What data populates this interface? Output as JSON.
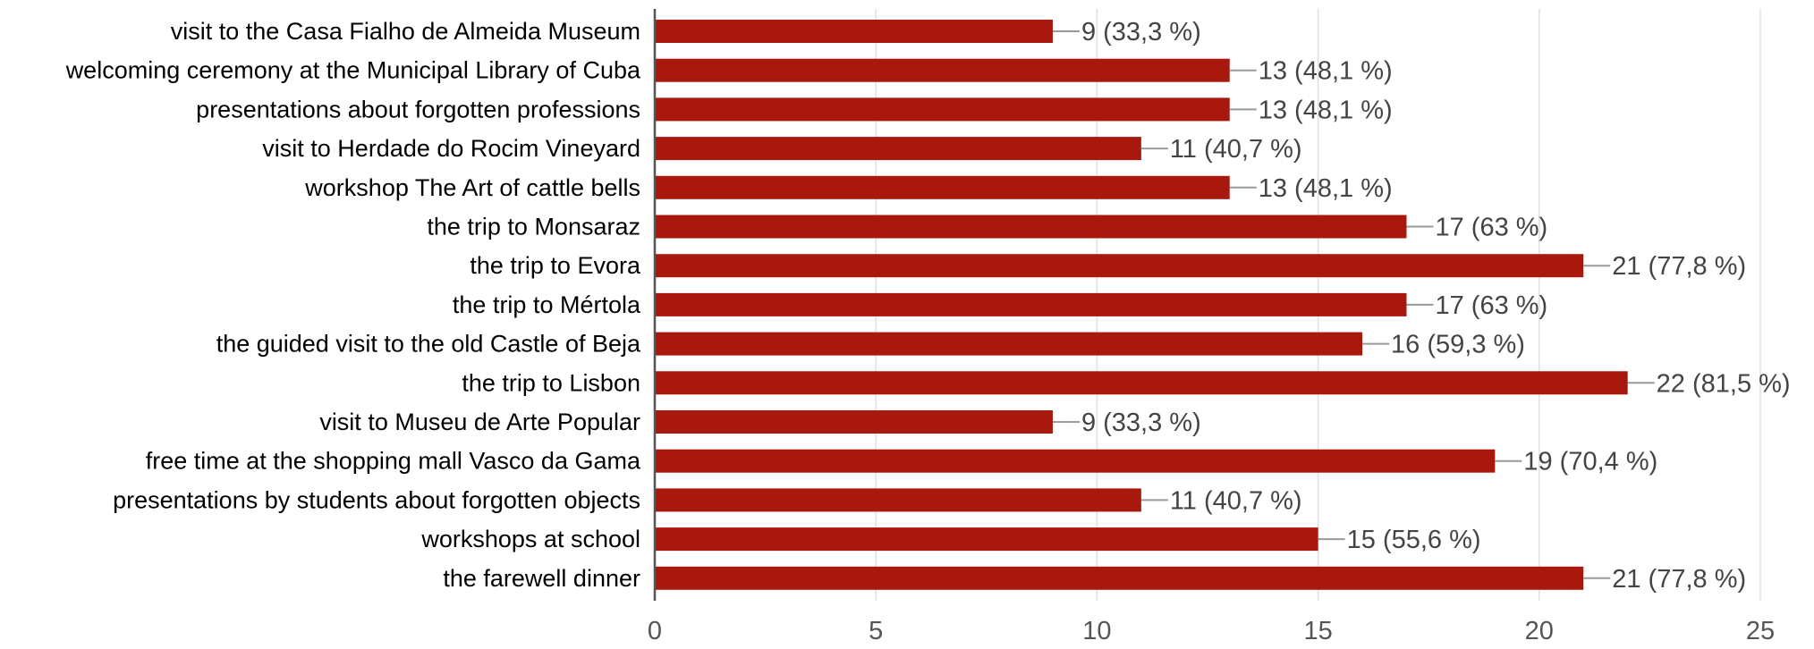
{
  "chart_data": {
    "type": "bar",
    "orientation": "horizontal",
    "categories": [
      "visit to the Casa Fialho de Almeida Museum",
      "welcoming ceremony at the Municipal Library of Cuba",
      "presentations about forgotten professions",
      "visit to Herdade do Rocim Vineyard",
      "workshop The Art of cattle bells",
      "the trip to Monsaraz",
      "the trip to Evora",
      "the trip to Mértola",
      "the guided visit to the old Castle of Beja",
      "the trip to Lisbon",
      "visit to Museu de Arte Popular",
      "free time at the shopping mall Vasco da Gama",
      "presentations by students about forgotten objects",
      "workshops at school",
      "the farewell dinner"
    ],
    "values": [
      9,
      13,
      13,
      11,
      13,
      17,
      21,
      17,
      16,
      22,
      9,
      19,
      11,
      15,
      21
    ],
    "data_labels": [
      "9 (33,3 %)",
      "13 (48,1 %)",
      "13 (48,1 %)",
      "11 (40,7 %)",
      "13 (48,1 %)",
      "17 (63 %)",
      "21 (77,8 %)",
      "17 (63 %)",
      "16 (59,3 %)",
      "22 (81,5 %)",
      "9 (33,3 %)",
      "19 (70,4 %)",
      "11 (40,7 %)",
      "15 (55,6 %)",
      "21 (77,8 %)"
    ],
    "xlim": [
      0,
      25
    ],
    "xticks": [
      0,
      5,
      10,
      15,
      20,
      25
    ],
    "xtick_labels": [
      "0",
      "5",
      "10",
      "15",
      "20",
      "25"
    ],
    "grid": "vertical",
    "legend": "none",
    "bar_color": "#a8180c",
    "grid_color": "#e0e0e0",
    "axis_color": "#555555",
    "leader_color": "#999999"
  }
}
